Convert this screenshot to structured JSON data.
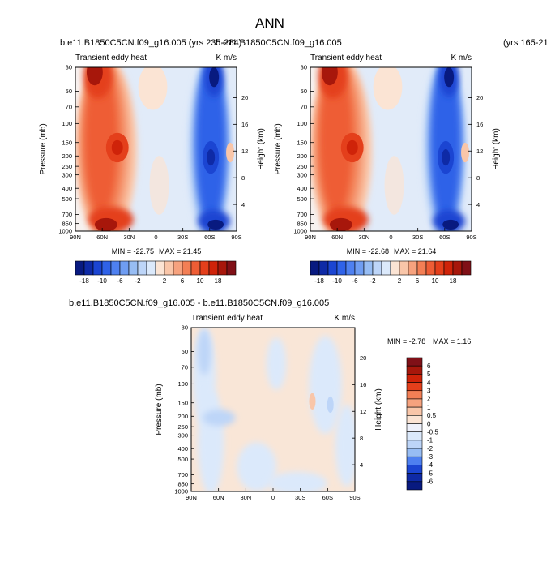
{
  "title": "ANN",
  "case_label_1": "b.e11.B1850C5CN.f09_g16.005 (yrs 235-284)",
  "case_label_2": "b.e11.B1850C5CN.f09_g16.005",
  "case_label_2_years": "(yrs 165-21",
  "diff_label": "b.e11.B1850C5CN.f09_g16.005 - b.e11.B1850C5CN.f09_g16.005",
  "variable": "Transient eddy heat",
  "units": "K m/s",
  "ylabel": "Pressure (mb)",
  "ylabel_right": "Height (km)",
  "colors": {
    "pos": [
      "#fbe4d4",
      "#f9c6a9",
      "#f6a27e",
      "#f37f55",
      "#ee5d35",
      "#e43f1b",
      "#cf2309",
      "#a7170b",
      "#801017"
    ],
    "neg": [
      "#dbe9fb",
      "#bdd5f8",
      "#97bdf4",
      "#6f9df2",
      "#4e80f0",
      "#2f62e8",
      "#1b45d2",
      "#0e2aa6",
      "#081a80"
    ]
  },
  "chart_data": [
    {
      "type": "heatmap",
      "name": "case1",
      "title": "Transient eddy heat",
      "units": "K m/s",
      "x_ticks": [
        "90N",
        "60N",
        "30N",
        "0",
        "30S",
        "60S",
        "90S"
      ],
      "x_values": [
        90,
        60,
        30,
        0,
        -30,
        -60,
        -90
      ],
      "xlim": [
        90,
        -90
      ],
      "y_ticks": [
        "30",
        "50",
        "70",
        "100",
        "150",
        "200",
        "250",
        "300",
        "400",
        "500",
        "700",
        "850",
        "1000"
      ],
      "y_values": [
        30,
        50,
        70,
        100,
        150,
        200,
        250,
        300,
        400,
        500,
        700,
        850,
        1000
      ],
      "ylim": [
        30,
        1000
      ],
      "yscale": "log",
      "height_ticks": [
        "20",
        "16",
        "12",
        "8",
        "4"
      ],
      "height_values": [
        20,
        16,
        12,
        8,
        4
      ],
      "min_label": "MIN = -22.75",
      "max_label": "MAX =  21.45",
      "min": -22.75,
      "max": 21.45,
      "colorbar_labels": [
        "-18",
        "-10",
        "-6",
        "-2",
        "2",
        "6",
        "10",
        "18"
      ],
      "colorbar_levels": [
        -18,
        -14,
        -10,
        -8,
        -6,
        -4,
        -2,
        -1,
        1,
        2,
        4,
        6,
        8,
        10,
        14,
        18
      ]
    },
    {
      "type": "heatmap",
      "name": "case2",
      "title": "Transient eddy heat",
      "units": "K m/s",
      "x_ticks": [
        "90N",
        "60N",
        "30N",
        "0",
        "30S",
        "60S",
        "90S"
      ],
      "x_values": [
        90,
        60,
        30,
        0,
        -30,
        -60,
        -90
      ],
      "xlim": [
        90,
        -90
      ],
      "y_ticks": [
        "30",
        "50",
        "70",
        "100",
        "150",
        "200",
        "250",
        "300",
        "400",
        "500",
        "700",
        "850",
        "1000"
      ],
      "y_values": [
        30,
        50,
        70,
        100,
        150,
        200,
        250,
        300,
        400,
        500,
        700,
        850,
        1000
      ],
      "ylim": [
        30,
        1000
      ],
      "yscale": "log",
      "height_ticks": [
        "20",
        "16",
        "12",
        "8",
        "4"
      ],
      "height_values": [
        20,
        16,
        12,
        8,
        4
      ],
      "min_label": "MIN = -22.68",
      "max_label": "MAX =  21.64",
      "min": -22.68,
      "max": 21.64,
      "colorbar_labels": [
        "-18",
        "-10",
        "-6",
        "-2",
        "2",
        "6",
        "10",
        "18"
      ],
      "colorbar_levels": [
        -18,
        -14,
        -10,
        -8,
        -6,
        -4,
        -2,
        -1,
        1,
        2,
        4,
        6,
        8,
        10,
        14,
        18
      ]
    },
    {
      "type": "heatmap",
      "name": "difference",
      "title": "Transient eddy heat",
      "units": "K m/s",
      "x_ticks": [
        "90N",
        "60N",
        "30N",
        "0",
        "30S",
        "60S",
        "90S"
      ],
      "x_values": [
        90,
        60,
        30,
        0,
        -30,
        -60,
        -90
      ],
      "xlim": [
        90,
        -90
      ],
      "y_ticks": [
        "30",
        "50",
        "70",
        "100",
        "150",
        "200",
        "250",
        "300",
        "400",
        "500",
        "700",
        "850",
        "1000"
      ],
      "y_values": [
        30,
        50,
        70,
        100,
        150,
        200,
        250,
        300,
        400,
        500,
        700,
        850,
        1000
      ],
      "ylim": [
        30,
        1000
      ],
      "yscale": "log",
      "height_ticks": [
        "20",
        "16",
        "12",
        "8",
        "4"
      ],
      "height_values": [
        20,
        16,
        12,
        8,
        4
      ],
      "min_label": "MIN =  -2.78",
      "max_label": "MAX =   1.16",
      "min": -2.78,
      "max": 1.16,
      "colorbar_labels": [
        "6",
        "5",
        "4",
        "3",
        "2",
        "1",
        "0.5",
        "0",
        "-0.5",
        "-1",
        "-2",
        "-3",
        "-4",
        "-5",
        "-6"
      ],
      "colorbar_levels": [
        -6,
        -5,
        -4,
        -3,
        -2,
        -1,
        -0.5,
        0,
        0.5,
        1,
        2,
        3,
        4,
        5,
        6
      ]
    }
  ]
}
